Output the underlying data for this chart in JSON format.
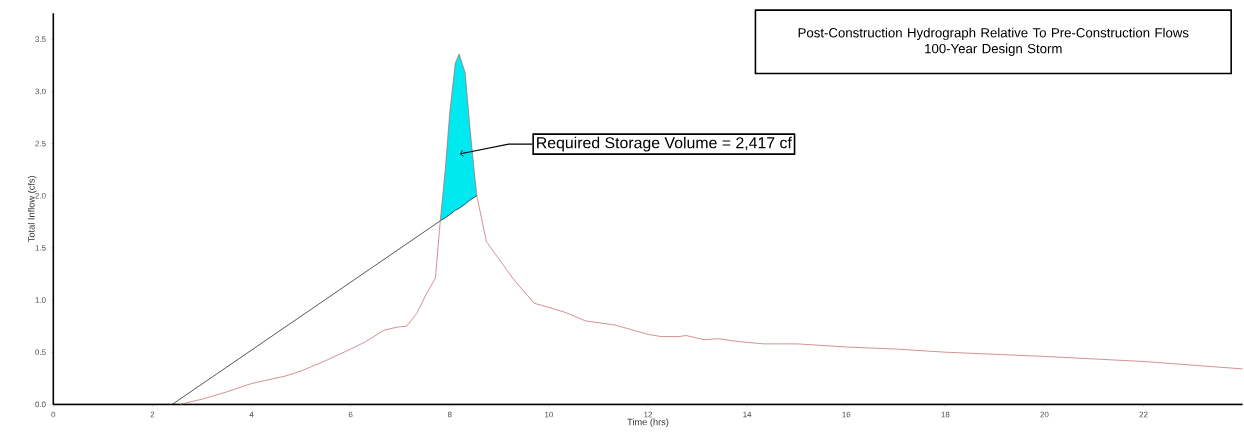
{
  "chart_data": {
    "type": "line",
    "title": "Post-Construction Hydrograph Relative To Pre-Construction Flows",
    "subtitle": "100-Year Design Storm",
    "xlabel": "Time (hrs)",
    "ylabel": "Total Inflow (cfs)",
    "xlim": [
      0,
      24
    ],
    "ylim": [
      0,
      3.75
    ],
    "xticks": [
      0,
      2,
      4,
      6,
      8,
      10,
      12,
      14,
      16,
      18,
      20,
      22
    ],
    "yticks": [
      {
        "value": 0,
        "label": "0.0"
      },
      {
        "value": 0.5,
        "label": "0.5"
      },
      {
        "value": 1,
        "label": "1.0"
      },
      {
        "value": 1.5,
        "label": "1.5"
      },
      {
        "value": 2,
        "label": "2.0"
      },
      {
        "value": 2.5,
        "label": "2.5"
      },
      {
        "value": 3,
        "label": "3.0"
      },
      {
        "value": 3.5,
        "label": "3.5"
      }
    ],
    "series": [
      {
        "color": "#000000",
        "x": [
          2.4,
          7.81,
          7.91,
          8.0,
          8.11,
          8.19,
          8.31,
          8.41,
          8.51,
          8.55
        ],
        "values": [
          0,
          1.76,
          1.79,
          1.82,
          1.86,
          1.88,
          1.92,
          1.96,
          1.99,
          2.0
        ],
        "lower": [
          null,
          1.76,
          1.79,
          1.82,
          1.86,
          1.88,
          1.92,
          1.96,
          1.99,
          2.0
        ],
        "upper": [
          null,
          1.77,
          2.26,
          2.8,
          3.27,
          3.36,
          3.18,
          2.64,
          2.16,
          1.99
        ]
      },
      {
        "color": "#c05a5a",
        "x": [
          2.55,
          3.0,
          3.5,
          4.0,
          4.67,
          5.0,
          5.5,
          6.0,
          6.3,
          6.67,
          6.93,
          7.13,
          7.33,
          7.53,
          7.71,
          7.81,
          7.91,
          8.0,
          8.11,
          8.19,
          8.31,
          8.41,
          8.51,
          8.55,
          8.74,
          9.27,
          9.7,
          10.0,
          10.34,
          10.74,
          11.34,
          12.01,
          12.27,
          12.61,
          12.77,
          13.14,
          13.41,
          13.87,
          14.34,
          15.01,
          16.01,
          17.01,
          18.01,
          19.0,
          20.0,
          22.04,
          24.0
        ],
        "values": [
          0,
          0.05,
          0.12,
          0.2,
          0.27,
          0.32,
          0.42,
          0.53,
          0.6,
          0.71,
          0.74,
          0.75,
          0.87,
          1.06,
          1.21,
          1.77,
          2.26,
          2.8,
          3.27,
          3.36,
          3.18,
          2.64,
          2.16,
          1.99,
          1.56,
          1.21,
          0.97,
          0.93,
          0.88,
          0.8,
          0.76,
          0.67,
          0.65,
          0.65,
          0.66,
          0.62,
          0.63,
          0.6,
          0.58,
          0.58,
          0.55,
          0.53,
          0.5,
          0.48,
          0.46,
          0.41,
          0.34
        ]
      }
    ],
    "annotations": [
      {
        "text": "Required Storage Volume = 2,417 cf",
        "x": 8.2,
        "y": 2.4
      }
    ]
  }
}
